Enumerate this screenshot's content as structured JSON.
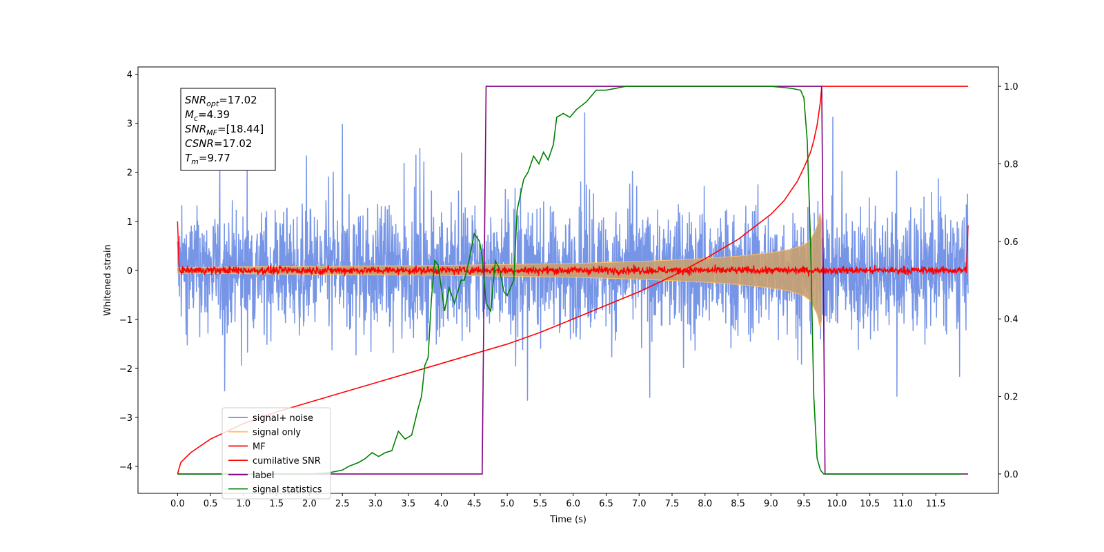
{
  "chart_data": {
    "type": "line",
    "title": "",
    "xlabel": "Time (s)",
    "ylabel_left": "Whitened strain",
    "ylabel_right": "",
    "xlim": [
      -0.6,
      12.45
    ],
    "ylim_left": [
      -4.55,
      4.15
    ],
    "ylim_right": [
      -0.05,
      1.05
    ],
    "x_ticks": [
      0.0,
      0.5,
      1.0,
      1.5,
      2.0,
      2.5,
      3.0,
      3.5,
      4.0,
      4.5,
      5.0,
      5.5,
      6.0,
      6.5,
      7.0,
      7.5,
      8.0,
      8.5,
      9.0,
      9.5,
      10.0,
      10.5,
      11.0,
      11.5
    ],
    "x_tick_labels": [
      "0.0",
      "0.5",
      "1.0",
      "1.5",
      "2.0",
      "2.5",
      "3.0",
      "3.5",
      "4.0",
      "4.5",
      "5.0",
      "5.5",
      "6.0",
      "6.5",
      "7.0",
      "7.5",
      "8.0",
      "8.5",
      "9.0",
      "9.5",
      "10.0",
      "10.5",
      "11.0",
      "11.5"
    ],
    "y_left_ticks": [
      4,
      3,
      2,
      1,
      0,
      -1,
      -2,
      -3,
      -4
    ],
    "y_left_tick_labels": [
      "4",
      "3",
      "2",
      "1",
      "0",
      "−1",
      "−2",
      "−3",
      "−4"
    ],
    "y_right_ticks": [
      1.0,
      0.8,
      0.6,
      0.4,
      0.2,
      0.0
    ],
    "y_right_tick_labels": [
      "1.0",
      "0.8",
      "0.6",
      "0.4",
      "0.2",
      "0.0"
    ],
    "grid": false,
    "legend_position": "lower-left",
    "legend": [
      {
        "label": "signal+ noise",
        "color": "#6f8fe6"
      },
      {
        "label": "signal only",
        "color": "#ffbf66"
      },
      {
        "label": "MF",
        "color": "#ff0000"
      },
      {
        "label": "cumilative SNR",
        "color": "#ff0000"
      },
      {
        "label": "label",
        "color": "#800080"
      },
      {
        "label": "signal statistics",
        "color": "#008000"
      }
    ],
    "stats_box": {
      "snr_opt": {
        "name": "SNR",
        "sub": "opt",
        "value": "=17.02"
      },
      "mc": {
        "name": "M",
        "sub": "c",
        "value": "=4.39"
      },
      "snr_mf": {
        "name": "SNR",
        "sub": "MF",
        "value": "=[18.44]"
      },
      "csnr": {
        "name": "CSNR",
        "sub": "",
        "value": "=17.02"
      },
      "tm": {
        "name": "T",
        "sub": "m",
        "value": "=9.77"
      }
    },
    "series": [
      {
        "name": "signal+ noise",
        "axis": "left",
        "color": "#6f8fe6",
        "description_values": {
          "t_start": 0.0,
          "t_end": 11.99,
          "noise_std": 0.95,
          "typical_range": [
            -3.8,
            3.6
          ]
        }
      },
      {
        "name": "signal only",
        "axis": "left",
        "color": "#ffbf66",
        "envelope": {
          "t": [
            0.0,
            2.0,
            4.0,
            6.0,
            7.0,
            8.0,
            8.5,
            9.0,
            9.3,
            9.5,
            9.6,
            9.7,
            9.75,
            9.77
          ],
          "amp": [
            0.06,
            0.08,
            0.1,
            0.14,
            0.18,
            0.24,
            0.29,
            0.36,
            0.43,
            0.52,
            0.62,
            0.9,
            1.2,
            1.0
          ]
        }
      },
      {
        "name": "MF",
        "axis": "left",
        "color": "#ff0000",
        "description_values": {
          "level": 0.0,
          "noise_std": 0.04,
          "edge_value_start": 1.0,
          "edge_value_end": 0.92
        }
      },
      {
        "name": "cumilative SNR",
        "axis": "right",
        "color": "#ff0000",
        "x": [
          0.0,
          0.05,
          0.2,
          0.5,
          1.0,
          1.5,
          2.0,
          2.5,
          3.0,
          3.5,
          4.0,
          4.5,
          5.0,
          5.5,
          6.0,
          6.5,
          7.0,
          7.5,
          8.0,
          8.5,
          9.0,
          9.2,
          9.4,
          9.5,
          9.6,
          9.65,
          9.7,
          9.75,
          9.77,
          11.99
        ],
        "y": [
          0.0,
          0.03,
          0.055,
          0.09,
          0.13,
          0.16,
          0.185,
          0.21,
          0.235,
          0.26,
          0.285,
          0.31,
          0.335,
          0.365,
          0.4,
          0.435,
          0.47,
          0.51,
          0.555,
          0.605,
          0.67,
          0.705,
          0.755,
          0.79,
          0.83,
          0.86,
          0.9,
          0.96,
          1.0,
          1.0
        ]
      },
      {
        "name": "label",
        "axis": "right",
        "color": "#800080",
        "x": [
          0.0,
          4.62,
          4.68,
          9.77,
          9.82,
          11.99
        ],
        "y": [
          0.0,
          0.0,
          1.0,
          1.0,
          0.0,
          0.0
        ]
      },
      {
        "name": "signal statistics",
        "axis": "right",
        "color": "#008000",
        "x": [
          0.0,
          1.0,
          2.0,
          2.3,
          2.5,
          2.6,
          2.75,
          2.85,
          2.95,
          3.05,
          3.15,
          3.25,
          3.35,
          3.45,
          3.55,
          3.65,
          3.7,
          3.75,
          3.8,
          3.85,
          3.9,
          3.95,
          4.05,
          4.12,
          4.2,
          4.3,
          4.35,
          4.42,
          4.5,
          4.58,
          4.62,
          4.68,
          4.75,
          4.82,
          4.88,
          4.95,
          5.0,
          5.05,
          5.1,
          5.15,
          5.2,
          5.25,
          5.32,
          5.4,
          5.48,
          5.55,
          5.62,
          5.7,
          5.75,
          5.85,
          5.95,
          6.05,
          6.2,
          6.35,
          6.5,
          6.8,
          7.2,
          8.0,
          9.0,
          9.3,
          9.45,
          9.5,
          9.55,
          9.6,
          9.65,
          9.7,
          9.75,
          9.8,
          10.0,
          11.0,
          11.9
        ],
        "y": [
          0.0,
          0.0,
          0.0,
          0.003,
          0.01,
          0.02,
          0.03,
          0.04,
          0.055,
          0.045,
          0.055,
          0.06,
          0.11,
          0.09,
          0.1,
          0.17,
          0.2,
          0.28,
          0.3,
          0.45,
          0.55,
          0.54,
          0.42,
          0.48,
          0.44,
          0.5,
          0.5,
          0.55,
          0.62,
          0.6,
          0.56,
          0.44,
          0.42,
          0.55,
          0.53,
          0.47,
          0.46,
          0.48,
          0.5,
          0.68,
          0.72,
          0.76,
          0.78,
          0.82,
          0.8,
          0.83,
          0.81,
          0.85,
          0.92,
          0.93,
          0.92,
          0.94,
          0.96,
          0.99,
          0.99,
          1.0,
          1.0,
          1.0,
          1.0,
          0.995,
          0.99,
          0.97,
          0.86,
          0.6,
          0.2,
          0.04,
          0.01,
          0.0,
          0.0,
          0.0,
          0.0
        ]
      }
    ]
  }
}
